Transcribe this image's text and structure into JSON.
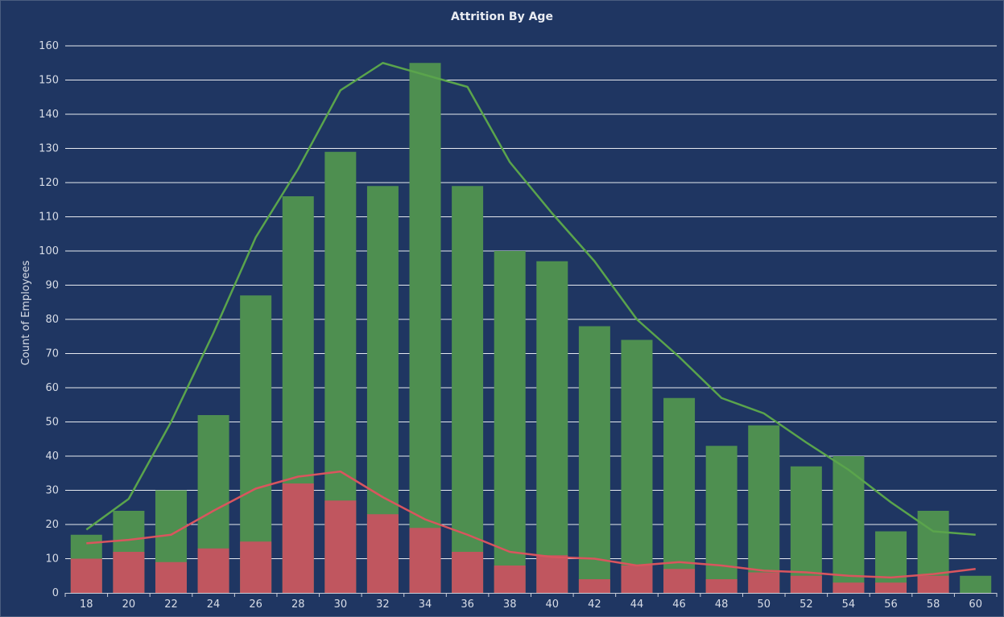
{
  "chart_data": {
    "type": "bar",
    "title": "Attrition By Age",
    "xlabel": "",
    "ylabel": "Count of Employees",
    "ylim": [
      0,
      160
    ],
    "yticks": [
      0,
      10,
      20,
      30,
      40,
      50,
      60,
      70,
      80,
      90,
      100,
      110,
      120,
      130,
      140,
      150,
      160
    ],
    "grid": true,
    "categories": [
      "18",
      "20",
      "22",
      "24",
      "26",
      "28",
      "30",
      "32",
      "34",
      "36",
      "38",
      "40",
      "42",
      "44",
      "46",
      "48",
      "50",
      "52",
      "54",
      "56",
      "58",
      "60"
    ],
    "series": [
      {
        "values": [
          17,
          24,
          30,
          52,
          87,
          116,
          129,
          119,
          155,
          119,
          100,
          97,
          78,
          74,
          57,
          43,
          49,
          37,
          40,
          18,
          24,
          5
        ],
        "color": "#4e8f50"
      },
      {
        "values": [
          10,
          12,
          9,
          13,
          15,
          32,
          27,
          23,
          19,
          12,
          8,
          11,
          4,
          8,
          7,
          4,
          6,
          5,
          3,
          3,
          5,
          0
        ],
        "color": "#c0565f"
      }
    ],
    "trend_lines": [
      {
        "color": "#5aa44c",
        "values": [
          18.5,
          27.5,
          50,
          76,
          104,
          124,
          147,
          155,
          151.5,
          148,
          126,
          111,
          97,
          80,
          69,
          57,
          52.5,
          44,
          36,
          26.5,
          18,
          17
        ]
      },
      {
        "color": "#d9555e",
        "values": [
          14.5,
          15.5,
          17,
          24,
          30.5,
          34,
          35.5,
          28,
          21.5,
          17,
          12,
          10.5,
          10,
          8,
          9,
          8,
          6.5,
          6,
          5,
          4.5,
          5.5,
          7
        ]
      }
    ]
  }
}
